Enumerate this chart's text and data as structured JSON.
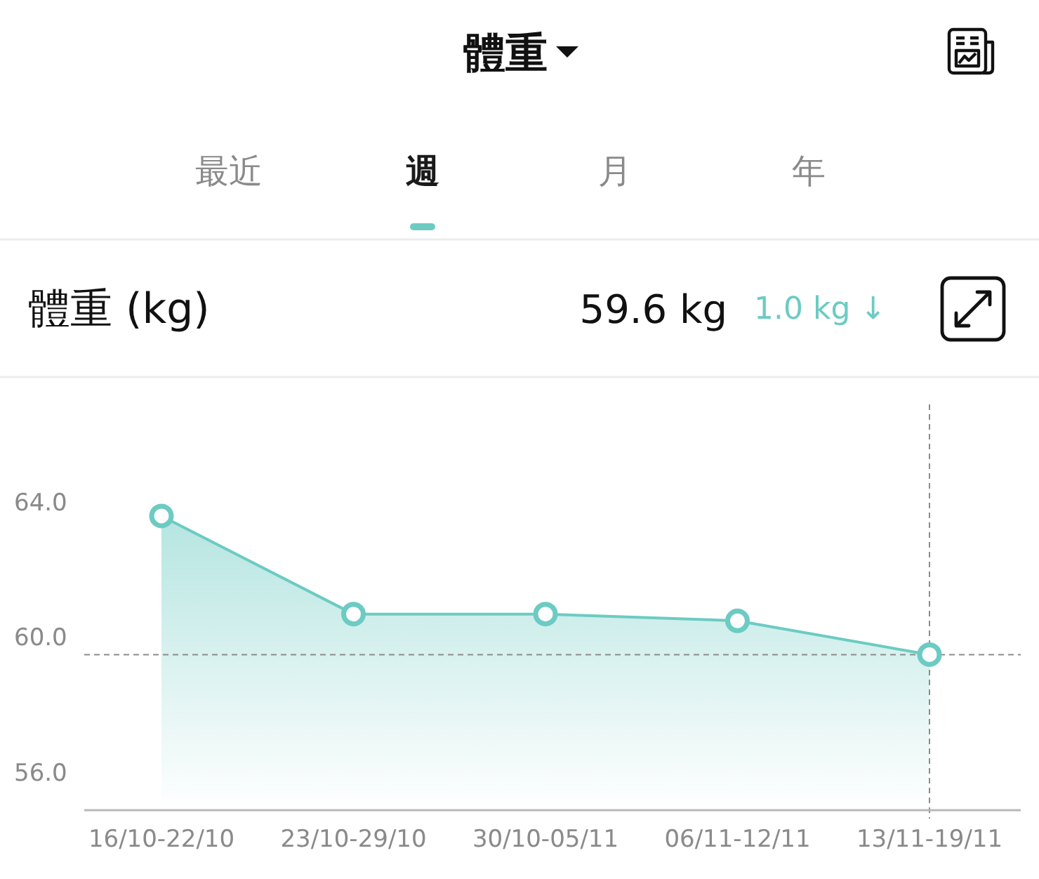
{
  "chart_data": {
    "type": "area",
    "title": "體重",
    "ylabel": "體重 (kg)",
    "annotations": [
      "最近",
      "週",
      "月",
      "年",
      "59.6 kg",
      "1.0 kg ↓"
    ],
    "categories": [
      "16/10-22/10",
      "23/10-29/10",
      "30/10-05/11",
      "06/11-12/11",
      "13/11-19/11"
    ],
    "series": [
      {
        "color": "#6ccbc3",
        "values": [
          63.7,
          60.8,
          60.8,
          60.6,
          59.6
        ]
      }
    ],
    "ylim": [
      55,
      67
    ],
    "yticks": [
      {
        "value": 56,
        "label": "56.0"
      },
      {
        "value": 60,
        "label": "60.0"
      },
      {
        "value": 64,
        "label": "64.0"
      }
    ],
    "marker": "circle",
    "line_style": "solid",
    "ref_lines": [
      {
        "axis": "y",
        "value": 59.6,
        "color": "#8c8c8c",
        "line_style": "dashed"
      },
      {
        "axis": "x",
        "value": "13/11-19/11",
        "color": "#8c8c8c",
        "line_style": "dashed"
      }
    ]
  }
}
